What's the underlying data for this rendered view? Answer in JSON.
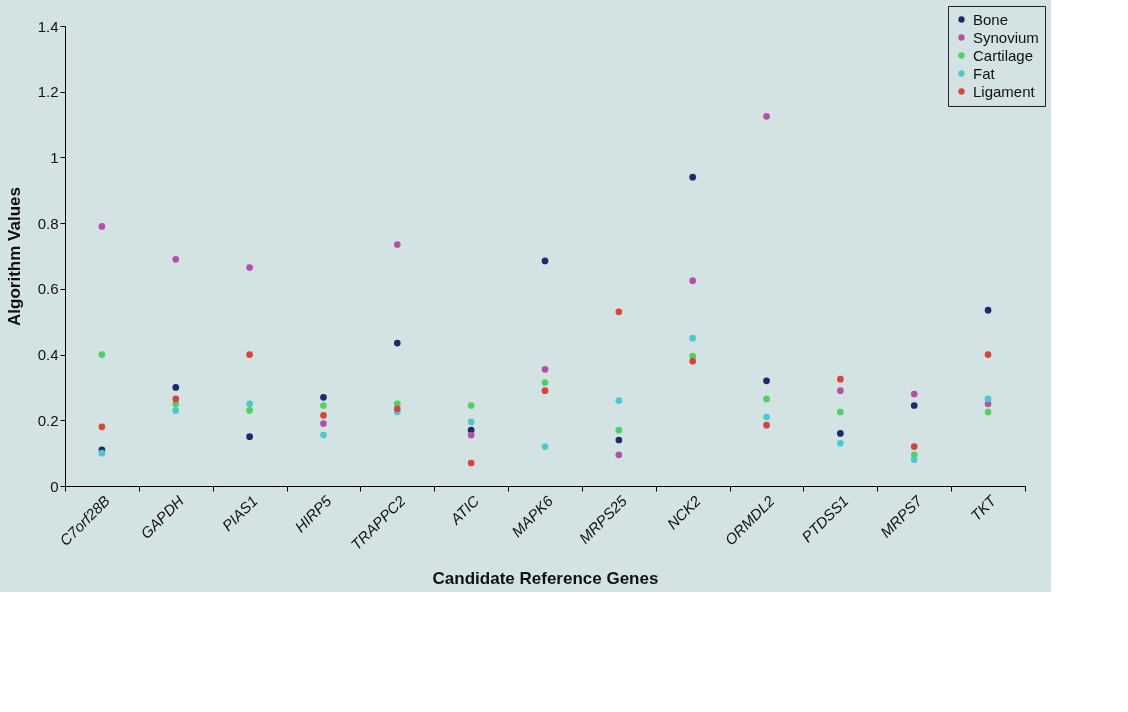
{
  "chart_data": {
    "type": "scatter",
    "xlabel": "Candidate Reference Genes",
    "ylabel": "Algorithm Values",
    "categories": [
      "C7orf28B",
      "GAPDH",
      "PIAS1",
      "HIRP5",
      "TRAPPC2",
      "ATIC",
      "MAPK6",
      "MRPS25",
      "NCK2",
      "ORMDL2",
      "PTDSS1",
      "MRPS7",
      "TKT"
    ],
    "series": [
      {
        "name": "Bone",
        "color": "#1c2a6e",
        "values": [
          0.11,
          0.3,
          0.15,
          0.27,
          0.435,
          0.17,
          0.685,
          0.14,
          0.94,
          0.32,
          0.16,
          0.245,
          0.535
        ]
      },
      {
        "name": "Synovium",
        "color": "#b64fa8",
        "values": [
          0.79,
          0.69,
          0.665,
          0.19,
          0.735,
          0.155,
          0.355,
          0.095,
          0.625,
          1.125,
          0.29,
          0.28,
          0.25
        ]
      },
      {
        "name": "Cartilage",
        "color": "#52d060",
        "values": [
          0.4,
          0.25,
          0.23,
          0.245,
          0.25,
          0.245,
          0.315,
          0.17,
          0.395,
          0.265,
          0.225,
          0.095,
          0.225
        ]
      },
      {
        "name": "Fat",
        "color": "#4cc8d0",
        "values": [
          0.1,
          0.23,
          0.25,
          0.155,
          0.225,
          0.195,
          0.12,
          0.26,
          0.45,
          0.21,
          0.13,
          0.08,
          0.265
        ]
      },
      {
        "name": "Ligament",
        "color": "#d8443a",
        "values": [
          0.18,
          0.265,
          0.4,
          0.215,
          0.235,
          0.07,
          0.29,
          0.53,
          0.38,
          0.185,
          0.325,
          0.12,
          0.4
        ]
      }
    ],
    "ylim": [
      0,
      1.4
    ],
    "yticks": [
      0,
      0.2,
      0.4,
      0.6,
      0.8,
      1,
      1.2,
      1.4
    ],
    "grid": false,
    "legend": "top right",
    "marker": "circle"
  }
}
